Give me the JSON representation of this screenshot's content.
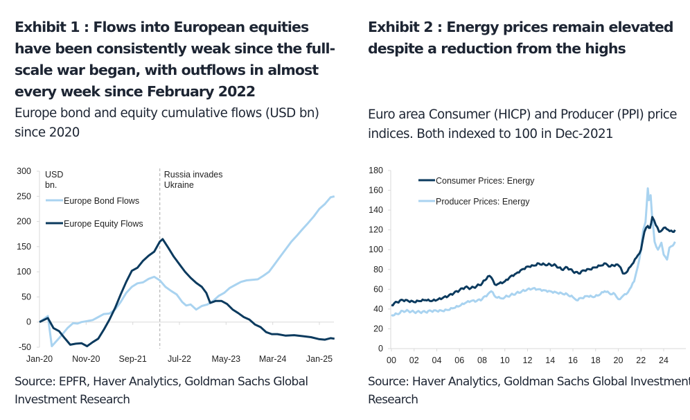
{
  "exhibits": [
    {
      "title": "Exhibit 1 : Flows into European equities have been consistently weak since the full-scale war began, with outflows in almost every week since February 2022",
      "subtitle": "Europe bond and equity cumulative flows (USD bn) since 2020",
      "source": "Source: EPFR, Haver Analytics, Goldman Sachs Global Investment Research"
    },
    {
      "title": "Exhibit 2 : Energy prices remain elevated despite a reduction from the highs",
      "subtitle": "Euro area Consumer (HICP) and Producer (PPI) price indices. Both indexed to 100 in Dec-2021",
      "source": "Source: Haver Analytics, Goldman Sachs Global Investment Research"
    }
  ],
  "colors": {
    "dark_navy": "#0b3a5e",
    "light_blue": "#a9d3f0",
    "axis": "#d9d9d9",
    "annotation_line": "#a6a6a6"
  },
  "chart_data": [
    {
      "type": "line",
      "title": "Europe bond and equity cumulative flows (USD bn) since 2020",
      "ylabel": "USD bn.",
      "unit_label_line1": "USD",
      "unit_label_line2": "bn.",
      "xlabel": "",
      "ylim": [
        -50,
        300
      ],
      "yticks": [
        -50,
        0,
        50,
        100,
        150,
        200,
        250,
        300
      ],
      "xlim": [
        2020.0,
        2025.33
      ],
      "xticks": [
        {
          "label": "Jan-20",
          "x": 2020.0
        },
        {
          "label": "Nov-20",
          "x": 2020.833
        },
        {
          "label": "Sep-21",
          "x": 2021.667
        },
        {
          "label": "Jul-22",
          "x": 2022.5
        },
        {
          "label": "May-23",
          "x": 2023.333
        },
        {
          "label": "Mar-24",
          "x": 2024.167
        },
        {
          "label": "Jan-25",
          "x": 2025.0
        }
      ],
      "grid": false,
      "legend": "top-left",
      "annotation": {
        "label_line1": "Russia invades",
        "label_line2": "Ukraine",
        "x": 2022.15
      },
      "series": [
        {
          "name": "Europe Bond Flows",
          "color": "#a9d3f0",
          "x": [
            2020.0,
            2020.15,
            2020.22,
            2020.35,
            2020.5,
            2020.6,
            2020.68,
            2020.75,
            2020.85,
            2020.95,
            2021.05,
            2021.15,
            2021.25,
            2021.35,
            2021.45,
            2021.55,
            2021.65,
            2021.75,
            2021.85,
            2021.95,
            2022.05,
            2022.15,
            2022.25,
            2022.35,
            2022.45,
            2022.55,
            2022.62,
            2022.7,
            2022.8,
            2022.9,
            2023.0,
            2023.1,
            2023.2,
            2023.3,
            2023.4,
            2023.5,
            2023.6,
            2023.7,
            2023.8,
            2023.9,
            2024.0,
            2024.1,
            2024.2,
            2024.3,
            2024.4,
            2024.5,
            2024.6,
            2024.7,
            2024.8,
            2024.9,
            2025.0,
            2025.1,
            2025.2,
            2025.27
          ],
          "values": [
            0,
            12,
            -48,
            -32,
            -12,
            -2,
            -3,
            0,
            2,
            4,
            10,
            16,
            17,
            25,
            40,
            58,
            70,
            77,
            79,
            86,
            90,
            83,
            70,
            62,
            55,
            40,
            33,
            35,
            25,
            32,
            35,
            42,
            52,
            58,
            68,
            74,
            80,
            83,
            84,
            85,
            92,
            100,
            115,
            130,
            145,
            160,
            172,
            185,
            197,
            210,
            225,
            235,
            248,
            250
          ]
        },
        {
          "name": "Europe Equity Flows",
          "color": "#0b3a5e",
          "x": [
            2020.0,
            2020.15,
            2020.25,
            2020.35,
            2020.45,
            2020.55,
            2020.65,
            2020.75,
            2020.85,
            2020.95,
            2021.05,
            2021.15,
            2021.25,
            2021.35,
            2021.45,
            2021.55,
            2021.65,
            2021.75,
            2021.85,
            2021.95,
            2022.05,
            2022.15,
            2022.2,
            2022.3,
            2022.4,
            2022.5,
            2022.6,
            2022.7,
            2022.8,
            2022.9,
            2022.98,
            2023.05,
            2023.15,
            2023.25,
            2023.35,
            2023.45,
            2023.55,
            2023.65,
            2023.75,
            2023.85,
            2023.95,
            2024.05,
            2024.15,
            2024.25,
            2024.4,
            2024.55,
            2024.7,
            2024.85,
            2025.0,
            2025.1,
            2025.2,
            2025.27
          ],
          "values": [
            0,
            8,
            -12,
            -18,
            -32,
            -45,
            -43,
            -42,
            -48,
            -40,
            -33,
            -15,
            5,
            28,
            55,
            80,
            102,
            108,
            122,
            132,
            140,
            160,
            165,
            148,
            130,
            115,
            100,
            88,
            78,
            70,
            58,
            38,
            42,
            42,
            36,
            25,
            18,
            10,
            5,
            -5,
            -10,
            -20,
            -24,
            -24,
            -27,
            -26,
            -28,
            -30,
            -34,
            -35,
            -32,
            -33
          ]
        }
      ]
    },
    {
      "type": "line",
      "title": "Euro area Consumer (HICP) and Producer (PPI) price indices. Both indexed to 100 in Dec-2021",
      "xlabel": "",
      "ylabel": "",
      "ylim": [
        0,
        180
      ],
      "yticks": [
        0,
        20,
        40,
        60,
        80,
        100,
        120,
        140,
        160,
        180
      ],
      "xlim": [
        2000,
        2025.5
      ],
      "xticks": [
        "00",
        "02",
        "04",
        "06",
        "08",
        "10",
        "12",
        "14",
        "16",
        "18",
        "20",
        "22",
        "24"
      ],
      "grid": false,
      "legend": "top-left",
      "series": [
        {
          "name": "Consumer Prices: Energy",
          "color": "#0b3a5e",
          "x": [
            2000.0,
            2000.5,
            2001.0,
            2001.5,
            2002.0,
            2002.5,
            2003.0,
            2003.5,
            2004.0,
            2004.5,
            2005.0,
            2005.5,
            2006.0,
            2006.5,
            2007.0,
            2007.5,
            2008.0,
            2008.5,
            2008.8,
            2009.1,
            2009.5,
            2010.0,
            2010.5,
            2011.0,
            2011.5,
            2012.0,
            2012.5,
            2013.0,
            2013.5,
            2014.0,
            2014.5,
            2015.0,
            2015.5,
            2016.0,
            2016.5,
            2017.0,
            2017.5,
            2018.0,
            2018.5,
            2018.9,
            2019.3,
            2019.8,
            2020.2,
            2020.4,
            2020.8,
            2021.2,
            2021.6,
            2022.0,
            2022.3,
            2022.6,
            2022.8,
            2023.0,
            2023.3,
            2023.6,
            2024.0,
            2024.4,
            2024.8,
            2025.0
          ],
          "values": [
            44,
            47,
            49,
            48,
            47,
            48,
            49,
            48,
            49,
            51,
            53,
            56,
            59,
            62,
            61,
            63,
            66,
            73,
            72,
            65,
            66,
            68,
            73,
            76,
            80,
            83,
            84,
            86,
            85,
            85,
            84,
            80,
            82,
            78,
            76,
            79,
            80,
            82,
            84,
            86,
            83,
            85,
            82,
            76,
            78,
            85,
            92,
            100,
            118,
            124,
            122,
            133,
            125,
            118,
            122,
            120,
            118,
            120
          ]
        },
        {
          "name": "Producer Prices: Energy",
          "color": "#a9d3f0",
          "x": [
            2000.0,
            2000.5,
            2001.0,
            2001.5,
            2002.0,
            2002.5,
            2003.0,
            2003.5,
            2004.0,
            2004.5,
            2005.0,
            2005.5,
            2006.0,
            2006.5,
            2007.0,
            2007.5,
            2008.0,
            2008.5,
            2008.8,
            2009.2,
            2009.6,
            2010.0,
            2010.5,
            2011.0,
            2011.5,
            2012.0,
            2012.5,
            2013.0,
            2013.5,
            2014.0,
            2014.5,
            2015.0,
            2015.5,
            2016.0,
            2016.3,
            2016.8,
            2017.3,
            2017.8,
            2018.3,
            2018.8,
            2019.2,
            2019.7,
            2020.0,
            2020.3,
            2020.7,
            2021.0,
            2021.4,
            2021.7,
            2022.0,
            2022.2,
            2022.4,
            2022.6,
            2022.7,
            2022.85,
            2023.0,
            2023.2,
            2023.5,
            2023.8,
            2024.0,
            2024.3,
            2024.5,
            2024.8,
            2025.0
          ],
          "values": [
            34,
            35,
            38,
            38,
            37,
            37,
            37,
            38,
            38,
            38,
            39,
            41,
            43,
            46,
            48,
            48,
            50,
            55,
            58,
            52,
            51,
            52,
            54,
            56,
            58,
            60,
            61,
            60,
            59,
            58,
            57,
            56,
            55,
            52,
            49,
            51,
            53,
            52,
            54,
            58,
            56,
            55,
            50,
            52,
            55,
            60,
            68,
            82,
            100,
            120,
            128,
            162,
            150,
            155,
            130,
            108,
            100,
            107,
            95,
            90,
            102,
            104,
            108
          ]
        }
      ]
    }
  ]
}
